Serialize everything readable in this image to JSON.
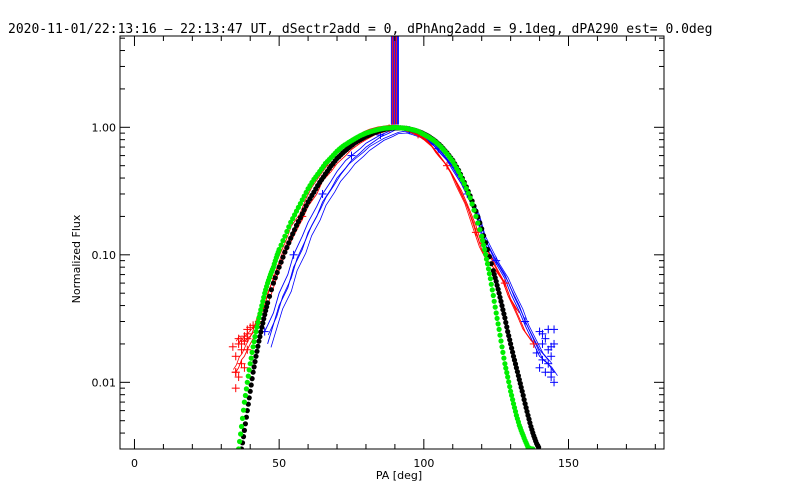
{
  "chart_data": {
    "type": "line",
    "title": "2020-11-01/22:13:16 – 22:13:47 UT, dSectr2add = 0, dPhAng2add = 9.1deg, dPA290_est=  0.0deg",
    "xlabel": "PA [deg]",
    "ylabel": "Normalized Flux",
    "xlim": [
      -5,
      183
    ],
    "ylim": [
      0.003,
      5.2
    ],
    "yscale": "log",
    "x_ticks": [
      0,
      50,
      100,
      150
    ],
    "x_tick_labels": [
      "0",
      "50",
      "100",
      "150"
    ],
    "y_ticks": [
      0.01,
      0.1,
      1.0
    ],
    "y_tick_labels": [
      "0.01",
      "0.10",
      "1.00"
    ],
    "grid": false,
    "colors": {
      "red": "#ff0000",
      "blue": "#0000ff",
      "green": "#00ee00",
      "black": "#000000"
    },
    "red_series": [
      {
        "x": [
          35,
          36,
          37,
          38,
          39,
          40,
          41,
          42,
          43,
          44,
          45,
          46,
          48,
          50,
          53,
          55,
          58,
          60,
          62,
          65,
          68,
          70,
          72,
          75,
          78,
          80,
          82,
          85,
          88,
          90,
          92,
          95,
          98,
          100,
          102,
          105,
          108,
          110,
          112,
          115,
          118,
          120,
          122,
          125,
          128,
          130,
          133,
          135,
          138
        ],
        "y": [
          0.012,
          0.013,
          0.015,
          0.016,
          0.018,
          0.02,
          0.022,
          0.025,
          0.03,
          0.035,
          0.04,
          0.05,
          0.065,
          0.085,
          0.12,
          0.16,
          0.2,
          0.26,
          0.32,
          0.4,
          0.5,
          0.58,
          0.65,
          0.73,
          0.82,
          0.88,
          0.92,
          0.96,
          0.98,
          0.99,
          0.98,
          0.94,
          0.88,
          0.82,
          0.75,
          0.62,
          0.5,
          0.42,
          0.33,
          0.24,
          0.15,
          0.11,
          0.09,
          0.075,
          0.06,
          0.045,
          0.032,
          0.025,
          0.02
        ]
      },
      {
        "x": [
          36,
          37,
          38,
          40,
          42,
          44,
          46,
          48,
          50,
          52,
          55,
          58,
          60,
          63,
          65,
          68,
          70,
          73,
          75,
          78,
          80,
          83,
          85,
          88,
          90,
          92,
          95,
          98,
          100,
          103,
          105,
          108,
          110,
          113,
          115,
          118,
          120,
          123,
          125,
          128,
          130,
          133
        ],
        "y": [
          0.02,
          0.022,
          0.021,
          0.023,
          0.026,
          0.03,
          0.04,
          0.055,
          0.075,
          0.1,
          0.14,
          0.19,
          0.24,
          0.3,
          0.38,
          0.45,
          0.52,
          0.6,
          0.67,
          0.75,
          0.8,
          0.87,
          0.9,
          0.95,
          0.98,
          0.97,
          0.92,
          0.86,
          0.8,
          0.7,
          0.6,
          0.5,
          0.42,
          0.32,
          0.25,
          0.17,
          0.12,
          0.1,
          0.08,
          0.06,
          0.045,
          0.035
        ]
      }
    ],
    "blue_series": [
      {
        "x": [
          45,
          48,
          50,
          53,
          55,
          58,
          60,
          63,
          65,
          68,
          70,
          73,
          75,
          78,
          80,
          83,
          85,
          88,
          90,
          92,
          95,
          98,
          100,
          103,
          105,
          108,
          110,
          113,
          115,
          118,
          120,
          123,
          125,
          128,
          130,
          133,
          135,
          138,
          140,
          143
        ],
        "y": [
          0.025,
          0.035,
          0.05,
          0.07,
          0.1,
          0.14,
          0.18,
          0.24,
          0.3,
          0.38,
          0.45,
          0.55,
          0.6,
          0.68,
          0.75,
          0.82,
          0.87,
          0.93,
          0.97,
          0.99,
          0.95,
          0.9,
          0.85,
          0.76,
          0.68,
          0.56,
          0.48,
          0.38,
          0.3,
          0.22,
          0.15,
          0.11,
          0.09,
          0.07,
          0.055,
          0.04,
          0.03,
          0.022,
          0.018,
          0.015
        ]
      },
      {
        "x": [
          46,
          50,
          53,
          55,
          58,
          60,
          63,
          65,
          68,
          70,
          73,
          75,
          78,
          80,
          83,
          85,
          88,
          90,
          93,
          95,
          98,
          100,
          103,
          105,
          108,
          110,
          113,
          115,
          118,
          120,
          123,
          125,
          128,
          130,
          133,
          135,
          138,
          140,
          143,
          145
        ],
        "y": [
          0.02,
          0.04,
          0.055,
          0.08,
          0.11,
          0.15,
          0.2,
          0.26,
          0.33,
          0.4,
          0.48,
          0.55,
          0.63,
          0.7,
          0.78,
          0.84,
          0.9,
          0.95,
          0.96,
          0.93,
          0.88,
          0.83,
          0.74,
          0.65,
          0.55,
          0.46,
          0.36,
          0.29,
          0.21,
          0.14,
          0.1,
          0.085,
          0.065,
          0.05,
          0.036,
          0.028,
          0.02,
          0.016,
          0.014,
          0.012
        ]
      }
    ],
    "blue_markers": {
      "x": [
        140,
        141,
        141,
        142,
        142,
        143,
        143,
        144,
        144,
        145,
        145,
        139,
        140,
        141,
        143,
        144,
        145,
        144
      ],
      "y": [
        0.025,
        0.02,
        0.015,
        0.012,
        0.022,
        0.018,
        0.014,
        0.016,
        0.011,
        0.01,
        0.02,
        0.017,
        0.013,
        0.024,
        0.026,
        0.012,
        0.026,
        0.019
      ]
    },
    "red_markers": {
      "x": [
        35,
        35,
        36,
        36,
        37,
        37,
        38,
        38,
        39,
        39,
        40,
        41,
        35,
        36,
        38,
        37,
        39,
        34
      ],
      "y": [
        0.012,
        0.016,
        0.02,
        0.022,
        0.014,
        0.018,
        0.021,
        0.023,
        0.024,
        0.026,
        0.027,
        0.028,
        0.009,
        0.011,
        0.013,
        0.02,
        0.022,
        0.019
      ]
    },
    "green_dots": {
      "x": [
        36,
        37,
        38,
        39,
        40,
        41,
        42,
        43,
        44,
        45,
        46,
        47,
        48,
        49,
        50,
        52,
        54,
        56,
        58,
        60,
        62,
        64,
        66,
        68,
        70,
        72,
        74,
        76,
        78,
        80,
        82,
        84,
        86,
        88,
        90,
        92,
        94,
        96,
        98,
        100,
        102,
        104,
        106,
        108,
        110,
        112,
        114,
        116,
        118,
        120,
        121,
        122,
        123,
        124,
        125,
        126,
        127,
        128,
        129,
        130,
        131,
        132,
        133,
        134,
        135,
        136,
        137,
        138
      ],
      "y": [
        0.003,
        0.0045,
        0.007,
        0.01,
        0.014,
        0.019,
        0.025,
        0.032,
        0.04,
        0.05,
        0.06,
        0.07,
        0.08,
        0.095,
        0.11,
        0.14,
        0.18,
        0.22,
        0.27,
        0.33,
        0.39,
        0.45,
        0.52,
        0.58,
        0.65,
        0.71,
        0.76,
        0.81,
        0.86,
        0.9,
        0.93,
        0.96,
        0.98,
        0.99,
        1.0,
        0.99,
        0.98,
        0.96,
        0.93,
        0.88,
        0.83,
        0.77,
        0.7,
        0.62,
        0.54,
        0.45,
        0.36,
        0.28,
        0.2,
        0.14,
        0.11,
        0.085,
        0.065,
        0.048,
        0.035,
        0.026,
        0.019,
        0.014,
        0.011,
        0.0085,
        0.0068,
        0.0055,
        0.0046,
        0.004,
        0.0035,
        0.0031,
        0.003,
        0.003
      ]
    },
    "black_dots": {
      "x": [
        37,
        38,
        39,
        40,
        41,
        42,
        43,
        44,
        45,
        46,
        48,
        50,
        52,
        54,
        56,
        58,
        60,
        62,
        64,
        66,
        68,
        70,
        72,
        74,
        76,
        78,
        80,
        82,
        84,
        86,
        88,
        90,
        92,
        94,
        96,
        98,
        100,
        102,
        104,
        106,
        108,
        110,
        112,
        114,
        116,
        118,
        120,
        122,
        124,
        125,
        126,
        127,
        128,
        129,
        130,
        131,
        132,
        133,
        134,
        135,
        136,
        137,
        138,
        139,
        140
      ],
      "y": [
        0.003,
        0.0042,
        0.006,
        0.0085,
        0.012,
        0.016,
        0.021,
        0.027,
        0.034,
        0.042,
        0.06,
        0.08,
        0.105,
        0.135,
        0.17,
        0.21,
        0.26,
        0.31,
        0.37,
        0.43,
        0.5,
        0.57,
        0.63,
        0.69,
        0.75,
        0.8,
        0.85,
        0.89,
        0.93,
        0.96,
        0.98,
        0.99,
        0.99,
        0.98,
        0.96,
        0.93,
        0.89,
        0.84,
        0.78,
        0.71,
        0.63,
        0.55,
        0.46,
        0.37,
        0.29,
        0.22,
        0.16,
        0.11,
        0.075,
        0.062,
        0.05,
        0.04,
        0.032,
        0.025,
        0.02,
        0.016,
        0.013,
        0.0105,
        0.0085,
        0.0068,
        0.0055,
        0.0045,
        0.0038,
        0.0033,
        0.003
      ]
    },
    "spike": {
      "x": 90,
      "top": 5.2,
      "bottom": 1.05
    }
  }
}
